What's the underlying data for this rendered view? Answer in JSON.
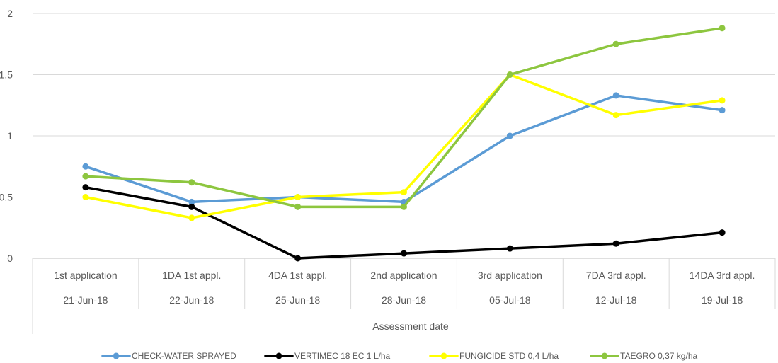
{
  "chart_data": {
    "type": "line",
    "title": "",
    "ylabel": "",
    "xlabel": "Assessment date",
    "ylim": [
      0,
      2
    ],
    "yticks": [
      0,
      0.5,
      1,
      1.5,
      2
    ],
    "ytick_labels": [
      "0",
      "0.5",
      "1",
      "1.5",
      "2"
    ],
    "grid": true,
    "legend": "bottom",
    "categories": [
      {
        "label": "1st application",
        "date": "21-Jun-18"
      },
      {
        "label": "1DA 1st appl.",
        "date": "22-Jun-18"
      },
      {
        "label": "4DA 1st appl.",
        "date": "25-Jun-18"
      },
      {
        "label": "2nd application",
        "date": "28-Jun-18"
      },
      {
        "label": "3rd application",
        "date": "05-Jul-18"
      },
      {
        "label": "7DA 3rd appl.",
        "date": "12-Jul-18"
      },
      {
        "label": "14DA 3rd appl.",
        "date": "19-Jul-18"
      }
    ],
    "series": [
      {
        "name": "CHECK-WATER SPRAYED",
        "color": "#5b9bd5",
        "values": [
          0.75,
          0.46,
          0.5,
          0.46,
          1.0,
          1.33,
          1.21
        ]
      },
      {
        "name": "VERTIMEC 18 EC 1 L/ha",
        "color": "#000000",
        "values": [
          0.58,
          0.42,
          0.0,
          0.04,
          0.08,
          0.12,
          0.21
        ]
      },
      {
        "name": "FUNGICIDE STD 0,4 L/ha",
        "color": "#ffff00",
        "values": [
          0.5,
          0.33,
          0.5,
          0.54,
          1.5,
          1.17,
          1.29
        ]
      },
      {
        "name": "TAEGRO 0,37 kg/ha",
        "color": "#8dc63f",
        "values": [
          0.67,
          0.62,
          0.42,
          0.42,
          1.5,
          1.75,
          1.88
        ]
      }
    ]
  }
}
